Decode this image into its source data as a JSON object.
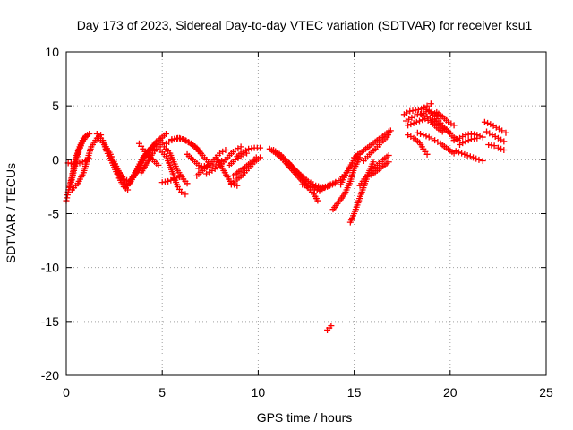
{
  "chart_data": {
    "type": "scatter",
    "title": "Day 173 of 2023, Sidereal Day-to-day VTEC variation (SDTVAR) for receiver ksu1",
    "xlabel": "GPS time / hours",
    "ylabel": "SDTVAR / TECUs",
    "xlim": [
      0,
      25
    ],
    "ylim": [
      -20,
      10
    ],
    "xticks": [
      0,
      5,
      10,
      15,
      20,
      25
    ],
    "yticks": [
      -20,
      -15,
      -10,
      -5,
      0,
      5,
      10
    ],
    "grid": true,
    "marker": "+",
    "color": "#ff0000",
    "tracks": [
      [
        [
          0.0,
          -3.8
        ],
        [
          0.1,
          -3.0
        ],
        [
          0.3,
          -1.5
        ],
        [
          0.5,
          0.2
        ],
        [
          0.7,
          1.2
        ],
        [
          0.9,
          2.0
        ],
        [
          1.1,
          2.3
        ]
      ],
      [
        [
          0.2,
          -2.5
        ],
        [
          0.4,
          -1.0
        ],
        [
          0.6,
          0.5
        ],
        [
          0.8,
          1.5
        ],
        [
          1.0,
          2.1
        ],
        [
          1.2,
          2.4
        ]
      ],
      [
        [
          0.1,
          -0.3
        ],
        [
          0.4,
          -0.4
        ],
        [
          0.7,
          -0.3
        ],
        [
          1.0,
          -0.1
        ],
        [
          1.2,
          0.1
        ]
      ],
      [
        [
          0.3,
          -2.8
        ],
        [
          0.6,
          -2.2
        ],
        [
          0.9,
          -1.2
        ],
        [
          1.1,
          0.0
        ],
        [
          1.3,
          1.2
        ],
        [
          1.6,
          2.0
        ],
        [
          1.8,
          2.3
        ]
      ],
      [
        [
          1.6,
          2.4
        ],
        [
          1.9,
          1.8
        ],
        [
          2.1,
          0.8
        ],
        [
          2.4,
          -0.3
        ],
        [
          2.7,
          -1.5
        ],
        [
          3.0,
          -2.5
        ],
        [
          3.2,
          -2.8
        ]
      ],
      [
        [
          1.7,
          2.0
        ],
        [
          2.0,
          1.4
        ],
        [
          2.3,
          0.5
        ],
        [
          2.6,
          -0.6
        ],
        [
          2.9,
          -1.7
        ],
        [
          3.2,
          -2.4
        ]
      ],
      [
        [
          2.4,
          -0.1
        ],
        [
          2.7,
          -1.0
        ],
        [
          3.0,
          -1.8
        ],
        [
          3.3,
          -2.0
        ],
        [
          3.6,
          -1.3
        ],
        [
          3.9,
          -0.5
        ]
      ],
      [
        [
          3.1,
          -2.6
        ],
        [
          3.4,
          -1.8
        ],
        [
          3.7,
          -0.8
        ],
        [
          4.0,
          0.2
        ],
        [
          4.3,
          0.9
        ],
        [
          4.6,
          1.4
        ]
      ],
      [
        [
          3.3,
          -2.2
        ],
        [
          3.6,
          -1.3
        ],
        [
          3.9,
          -0.3
        ],
        [
          4.2,
          0.6
        ],
        [
          4.5,
          1.2
        ],
        [
          4.9,
          1.8
        ]
      ],
      [
        [
          3.5,
          -1.6
        ],
        [
          3.8,
          -0.7
        ],
        [
          4.1,
          0.3
        ],
        [
          4.4,
          1.0
        ],
        [
          4.7,
          1.7
        ],
        [
          5.0,
          2.1
        ],
        [
          5.2,
          2.4
        ]
      ],
      [
        [
          3.9,
          -1.2
        ],
        [
          4.2,
          -0.3
        ],
        [
          4.5,
          0.6
        ],
        [
          4.8,
          1.2
        ],
        [
          5.0,
          1.6
        ]
      ],
      [
        [
          3.8,
          1.5
        ],
        [
          4.0,
          1.0
        ],
        [
          4.2,
          0.5
        ],
        [
          4.5,
          0.0
        ],
        [
          4.8,
          -0.5
        ]
      ],
      [
        [
          4.9,
          0.9
        ],
        [
          5.2,
          0.3
        ],
        [
          5.4,
          -0.5
        ],
        [
          5.6,
          -1.5
        ],
        [
          5.8,
          -2.5
        ],
        [
          6.0,
          -3.0
        ],
        [
          6.2,
          -3.2
        ]
      ],
      [
        [
          5.1,
          1.2
        ],
        [
          5.4,
          0.6
        ],
        [
          5.6,
          -0.2
        ],
        [
          5.8,
          -1.0
        ],
        [
          6.1,
          -1.8
        ],
        [
          6.3,
          -2.2
        ]
      ],
      [
        [
          5.0,
          -2.1
        ],
        [
          5.3,
          -2.0
        ],
        [
          5.6,
          -1.8
        ],
        [
          5.9,
          -1.6
        ]
      ],
      [
        [
          5.2,
          1.5
        ],
        [
          5.5,
          1.8
        ],
        [
          5.8,
          2.0
        ],
        [
          6.1,
          1.9
        ],
        [
          6.4,
          1.6
        ],
        [
          6.7,
          1.2
        ],
        [
          7.0,
          0.6
        ]
      ],
      [
        [
          5.5,
          1.9
        ],
        [
          5.9,
          2.0
        ],
        [
          6.2,
          1.8
        ],
        [
          6.5,
          1.5
        ],
        [
          6.8,
          1.1
        ],
        [
          7.1,
          0.4
        ],
        [
          7.4,
          -0.2
        ]
      ],
      [
        [
          6.3,
          0.5
        ],
        [
          6.6,
          0.0
        ],
        [
          6.9,
          -0.5
        ],
        [
          7.2,
          -0.7
        ],
        [
          7.5,
          -0.4
        ]
      ],
      [
        [
          6.8,
          -1.5
        ],
        [
          7.1,
          -1.0
        ],
        [
          7.4,
          -0.5
        ],
        [
          7.7,
          0.0
        ],
        [
          8.0,
          0.6
        ],
        [
          8.3,
          0.9
        ]
      ],
      [
        [
          6.9,
          -0.8
        ],
        [
          7.2,
          -0.6
        ],
        [
          7.5,
          -0.7
        ],
        [
          7.8,
          -0.4
        ],
        [
          8.1,
          -0.1
        ]
      ],
      [
        [
          7.3,
          -1.3
        ],
        [
          7.6,
          -1.0
        ],
        [
          7.9,
          -0.7
        ],
        [
          8.2,
          -0.2
        ],
        [
          8.5,
          0.4
        ],
        [
          8.8,
          0.9
        ],
        [
          9.1,
          1.2
        ]
      ],
      [
        [
          7.8,
          0.2
        ],
        [
          8.0,
          -0.4
        ],
        [
          8.2,
          -1.0
        ],
        [
          8.4,
          -1.6
        ],
        [
          8.6,
          -2.2
        ],
        [
          8.9,
          -2.4
        ]
      ],
      [
        [
          8.6,
          -2.3
        ],
        [
          8.9,
          -1.8
        ],
        [
          9.2,
          -1.4
        ],
        [
          9.5,
          -0.8
        ],
        [
          9.8,
          -0.2
        ],
        [
          10.1,
          0.2
        ]
      ],
      [
        [
          8.7,
          -1.5
        ],
        [
          9.0,
          -1.1
        ],
        [
          9.3,
          -0.7
        ],
        [
          9.6,
          -0.3
        ],
        [
          9.9,
          0.2
        ]
      ],
      [
        [
          8.9,
          0.3
        ],
        [
          9.2,
          0.7
        ],
        [
          9.5,
          1.0
        ],
        [
          9.8,
          1.1
        ],
        [
          10.1,
          1.1
        ]
      ],
      [
        [
          8.5,
          -0.5
        ],
        [
          8.8,
          0.0
        ],
        [
          9.1,
          0.3
        ],
        [
          9.4,
          0.6
        ]
      ],
      [
        [
          10.6,
          1.0
        ],
        [
          11.0,
          0.5
        ],
        [
          11.4,
          -0.2
        ],
        [
          11.8,
          -1.0
        ],
        [
          12.2,
          -1.8
        ],
        [
          12.6,
          -2.6
        ],
        [
          12.9,
          -3.2
        ],
        [
          13.1,
          -3.8
        ]
      ],
      [
        [
          10.8,
          0.9
        ],
        [
          11.2,
          0.4
        ],
        [
          11.6,
          -0.3
        ],
        [
          12.0,
          -1.1
        ],
        [
          12.4,
          -1.9
        ],
        [
          12.8,
          -2.5
        ],
        [
          13.2,
          -2.9
        ]
      ],
      [
        [
          11.0,
          0.6
        ],
        [
          11.4,
          0.0
        ],
        [
          11.8,
          -0.7
        ],
        [
          12.2,
          -1.4
        ],
        [
          12.6,
          -2.0
        ],
        [
          13.0,
          -2.4
        ],
        [
          13.4,
          -2.6
        ]
      ],
      [
        [
          12.3,
          -2.3
        ],
        [
          12.7,
          -2.5
        ],
        [
          13.1,
          -2.6
        ],
        [
          13.5,
          -2.5
        ],
        [
          13.9,
          -2.2
        ],
        [
          14.3,
          -1.8
        ],
        [
          14.6,
          -1.2
        ]
      ],
      [
        [
          12.8,
          -2.8
        ],
        [
          13.2,
          -2.8
        ],
        [
          13.6,
          -2.5
        ],
        [
          14.0,
          -2.2
        ]
      ],
      [
        [
          13.6,
          -15.8
        ],
        [
          13.7,
          -15.6
        ],
        [
          13.8,
          -15.4
        ]
      ],
      [
        [
          13.9,
          -4.6
        ],
        [
          14.2,
          -3.9
        ],
        [
          14.5,
          -3.2
        ],
        [
          14.8,
          -2.0
        ],
        [
          15.0,
          -0.8
        ],
        [
          15.3,
          0.2
        ]
      ],
      [
        [
          14.3,
          -2.3
        ],
        [
          14.6,
          -1.2
        ],
        [
          14.9,
          -0.3
        ],
        [
          15.2,
          0.5
        ]
      ],
      [
        [
          14.8,
          -5.8
        ],
        [
          15.0,
          -5.0
        ],
        [
          15.2,
          -4.0
        ],
        [
          15.4,
          -3.0
        ],
        [
          15.6,
          -2.0
        ],
        [
          15.8,
          -1.0
        ],
        [
          16.0,
          -0.2
        ]
      ],
      [
        [
          15.3,
          -2.4
        ],
        [
          15.6,
          -1.6
        ],
        [
          15.9,
          -1.0
        ],
        [
          16.2,
          -0.5
        ],
        [
          16.5,
          0.0
        ],
        [
          16.8,
          0.4
        ]
      ],
      [
        [
          15.0,
          0.2
        ],
        [
          15.3,
          0.6
        ],
        [
          15.6,
          1.0
        ],
        [
          15.9,
          1.4
        ],
        [
          16.2,
          1.8
        ],
        [
          16.5,
          2.2
        ],
        [
          16.8,
          2.6
        ]
      ],
      [
        [
          15.5,
          -0.1
        ],
        [
          15.8,
          0.5
        ],
        [
          16.1,
          1.0
        ],
        [
          16.4,
          1.6
        ],
        [
          16.7,
          2.1
        ],
        [
          16.9,
          2.7
        ]
      ],
      [
        [
          15.9,
          -1.4
        ],
        [
          16.2,
          -1.0
        ],
        [
          16.5,
          -0.6
        ],
        [
          16.8,
          -0.2
        ]
      ],
      [
        [
          17.6,
          4.2
        ],
        [
          17.9,
          4.5
        ],
        [
          18.2,
          4.6
        ],
        [
          18.5,
          4.7
        ],
        [
          18.8,
          5.0
        ],
        [
          19.0,
          5.2
        ]
      ],
      [
        [
          17.7,
          3.6
        ],
        [
          18.0,
          3.9
        ],
        [
          18.3,
          4.2
        ],
        [
          18.6,
          4.3
        ],
        [
          18.9,
          4.6
        ],
        [
          19.2,
          4.3
        ],
        [
          19.5,
          4.0
        ]
      ],
      [
        [
          17.8,
          3.2
        ],
        [
          18.1,
          3.4
        ],
        [
          18.4,
          3.6
        ],
        [
          18.7,
          3.8
        ],
        [
          19.0,
          3.5
        ],
        [
          19.3,
          3.0
        ],
        [
          19.6,
          2.6
        ]
      ],
      [
        [
          17.8,
          2.3
        ],
        [
          18.1,
          2.0
        ],
        [
          18.4,
          1.6
        ],
        [
          18.6,
          1.0
        ],
        [
          18.8,
          0.5
        ]
      ],
      [
        [
          18.6,
          4.8
        ],
        [
          18.9,
          4.5
        ],
        [
          19.2,
          4.0
        ],
        [
          19.5,
          3.4
        ],
        [
          19.8,
          2.8
        ],
        [
          20.1,
          2.2
        ],
        [
          20.4,
          1.8
        ]
      ],
      [
        [
          18.3,
          2.5
        ],
        [
          18.6,
          2.3
        ],
        [
          18.9,
          2.1
        ],
        [
          19.2,
          1.8
        ],
        [
          19.5,
          1.5
        ],
        [
          19.8,
          1.1
        ],
        [
          20.2,
          0.6
        ]
      ],
      [
        [
          19.3,
          4.4
        ],
        [
          19.6,
          4.0
        ],
        [
          19.9,
          3.5
        ],
        [
          20.2,
          3.2
        ]
      ],
      [
        [
          18.5,
          4.2
        ],
        [
          18.8,
          4.0
        ],
        [
          19.1,
          3.7
        ],
        [
          19.4,
          3.3
        ],
        [
          19.7,
          2.9
        ],
        [
          20.0,
          2.5
        ]
      ],
      [
        [
          20.2,
          1.8
        ],
        [
          20.5,
          2.0
        ],
        [
          20.8,
          2.3
        ],
        [
          21.1,
          2.4
        ],
        [
          21.4,
          2.3
        ],
        [
          21.7,
          2.1
        ]
      ],
      [
        [
          20.5,
          1.4
        ],
        [
          20.8,
          1.7
        ],
        [
          21.1,
          1.9
        ],
        [
          21.4,
          2.0
        ]
      ],
      [
        [
          20.3,
          0.8
        ],
        [
          20.6,
          0.6
        ],
        [
          20.9,
          0.4
        ],
        [
          21.2,
          0.2
        ],
        [
          21.5,
          0.0
        ],
        [
          21.7,
          -0.1
        ]
      ],
      [
        [
          21.8,
          3.5
        ],
        [
          22.1,
          3.3
        ],
        [
          22.4,
          3.0
        ],
        [
          22.7,
          2.7
        ],
        [
          22.9,
          2.5
        ]
      ],
      [
        [
          21.9,
          2.6
        ],
        [
          22.2,
          2.3
        ],
        [
          22.5,
          2.0
        ],
        [
          22.8,
          1.7
        ]
      ],
      [
        [
          22.0,
          1.4
        ],
        [
          22.3,
          1.3
        ],
        [
          22.5,
          1.1
        ],
        [
          22.8,
          0.9
        ]
      ]
    ]
  }
}
